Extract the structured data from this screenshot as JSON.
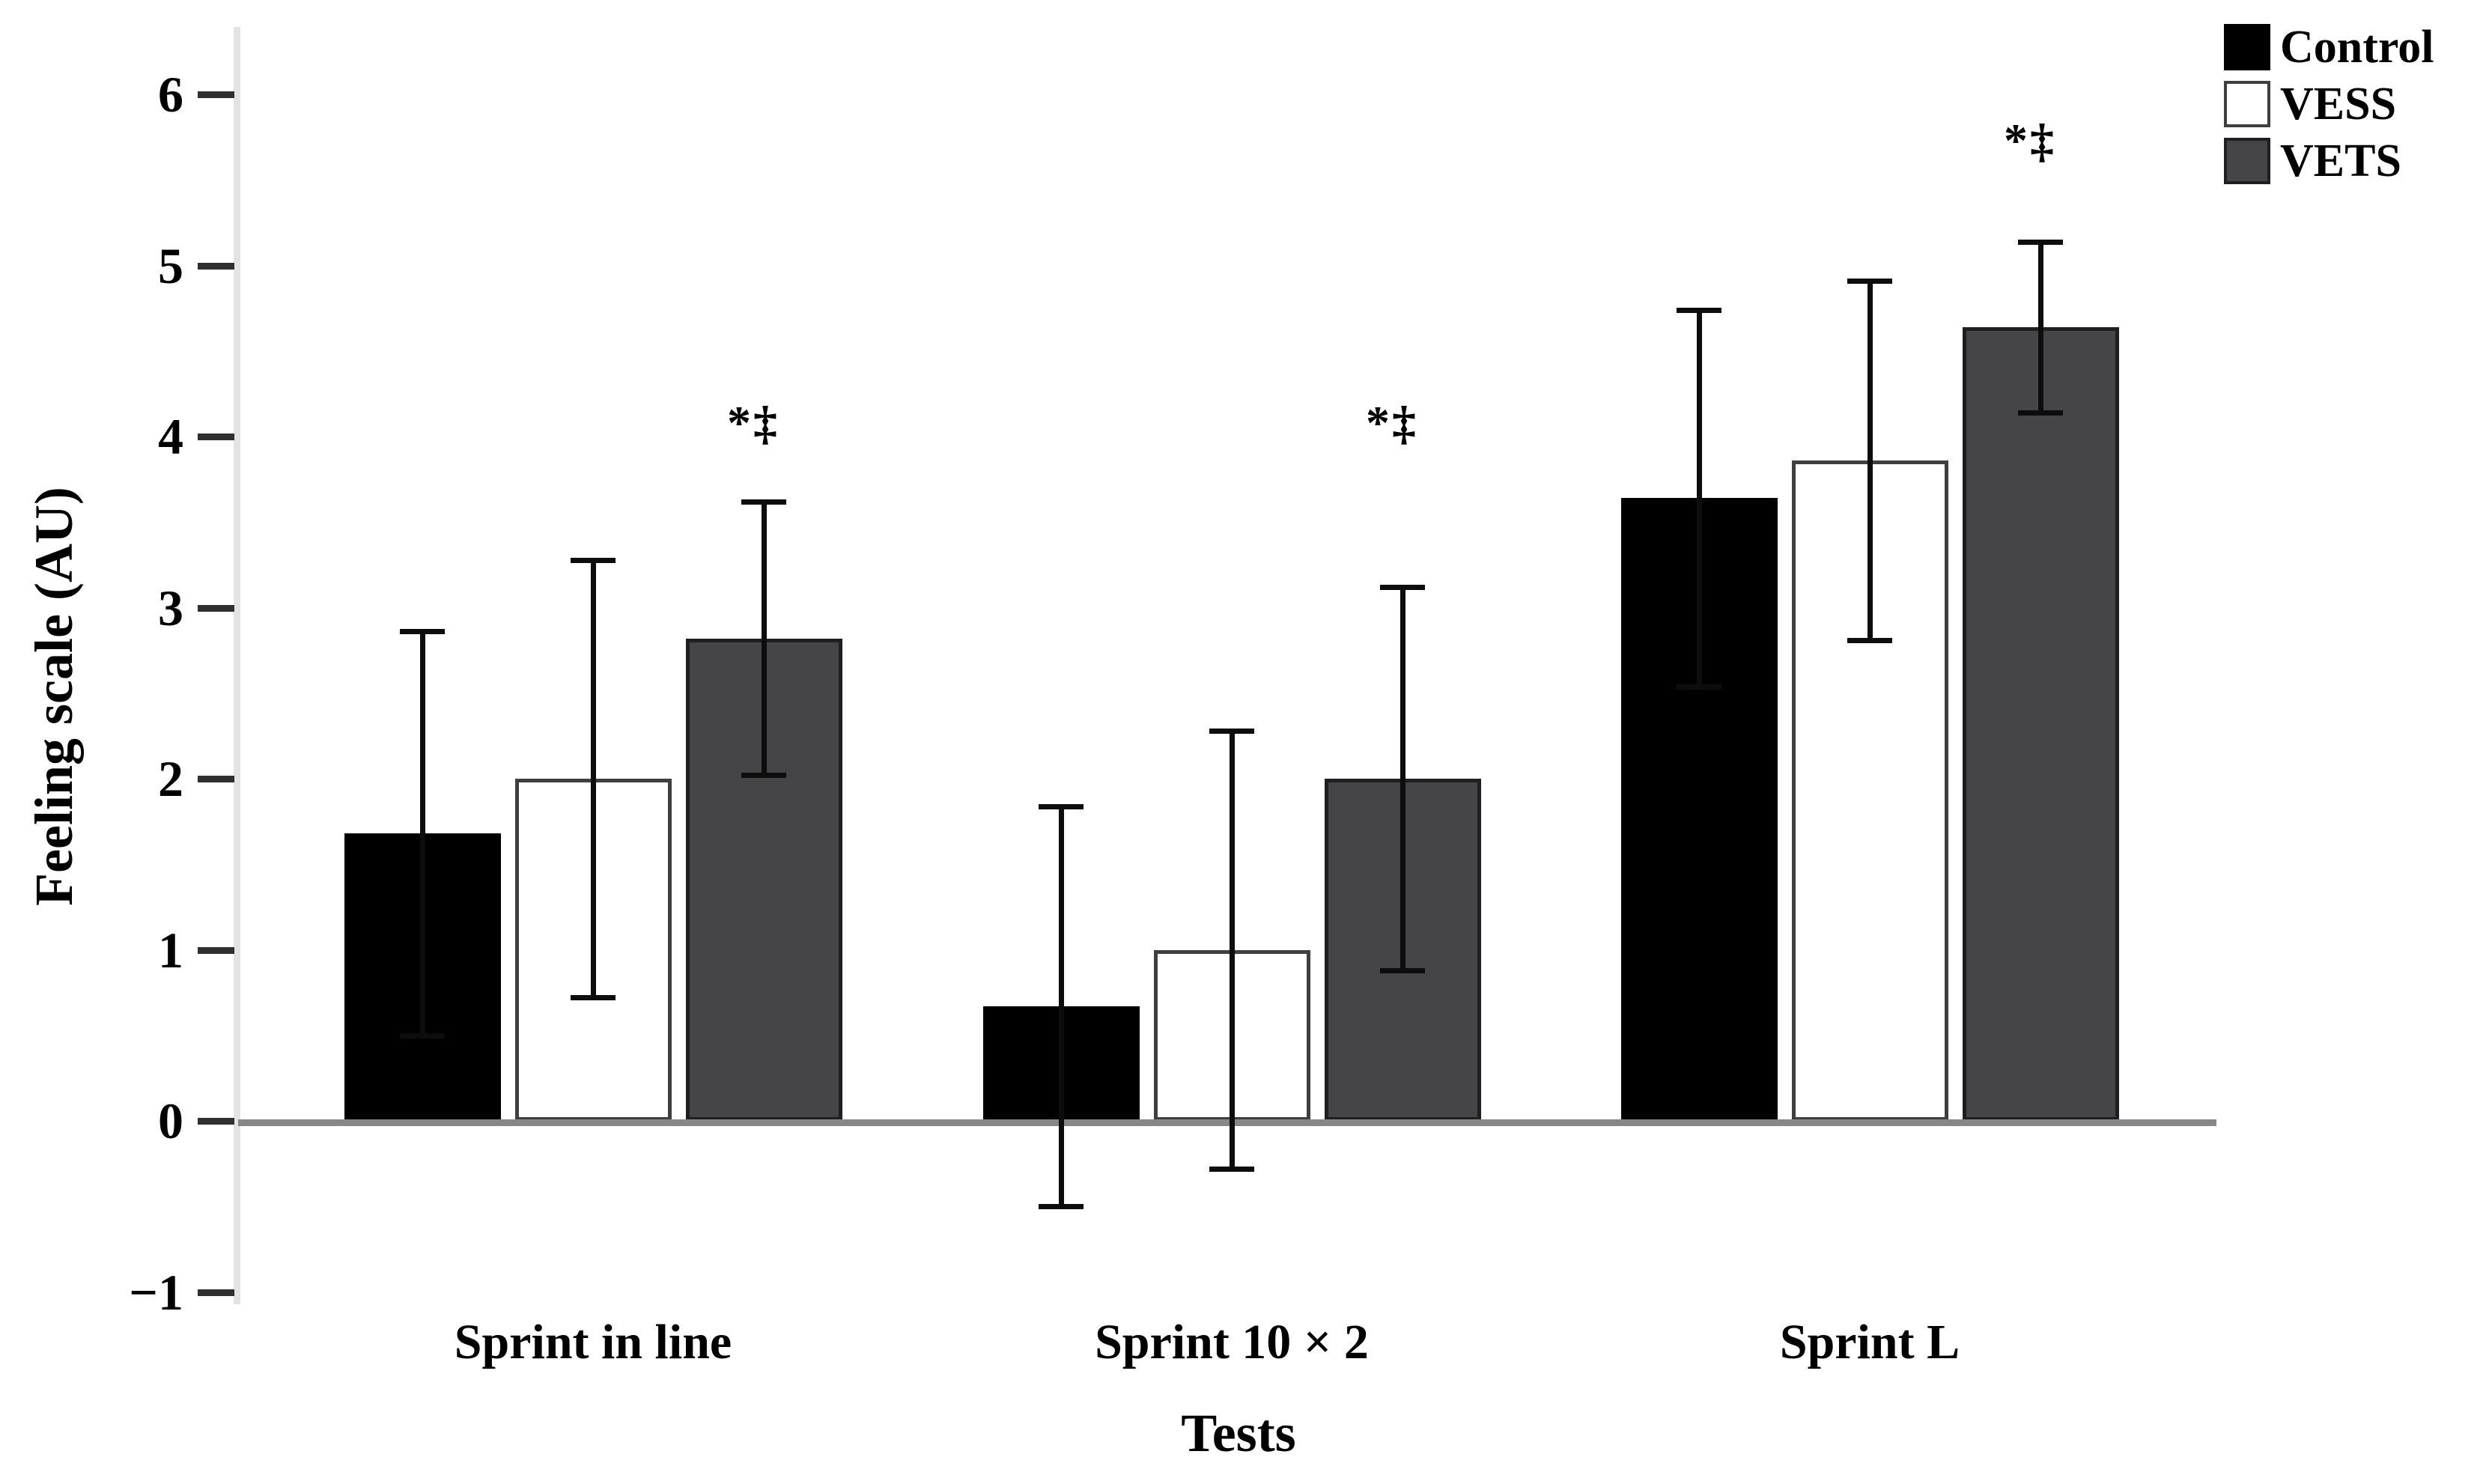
{
  "chart_data": {
    "type": "bar",
    "xlabel": "Tests",
    "ylabel": "Feeling scale (AU)",
    "ylim": [
      -1,
      6
    ],
    "yticks": [
      6,
      5,
      4,
      3,
      2,
      1,
      0,
      -1
    ],
    "categories": [
      "Sprint in line",
      "Sprint 10 × 2",
      "Sprint L"
    ],
    "series": [
      {
        "name": "Control",
        "fill": "#000000",
        "border": "#000000",
        "values": [
          1.68,
          0.67,
          3.64
        ],
        "errors": [
          1.18,
          1.17,
          1.1
        ]
      },
      {
        "name": "VESS",
        "fill": "#ffffff",
        "border": "#3f3f3f",
        "values": [
          2.0,
          1.0,
          3.86
        ],
        "errors": [
          1.28,
          1.28,
          1.05
        ]
      },
      {
        "name": "VETS",
        "fill": "#454548",
        "border": "#1f1f22",
        "values": [
          2.82,
          2.0,
          4.64
        ],
        "errors": [
          0.8,
          1.12,
          0.5
        ]
      }
    ],
    "annotations": [
      {
        "category": "Sprint in line",
        "series": "VETS",
        "text": "*‡",
        "y": 4.08
      },
      {
        "category": "Sprint 10 × 2",
        "series": "VETS",
        "text": "*‡",
        "y": 4.08
      },
      {
        "category": "Sprint L",
        "series": "VETS",
        "text": "*‡",
        "y": 5.73
      }
    ],
    "legend": {
      "position": "top-right",
      "entries": [
        "Control",
        "VESS",
        "VETS"
      ]
    },
    "grid": false
  }
}
